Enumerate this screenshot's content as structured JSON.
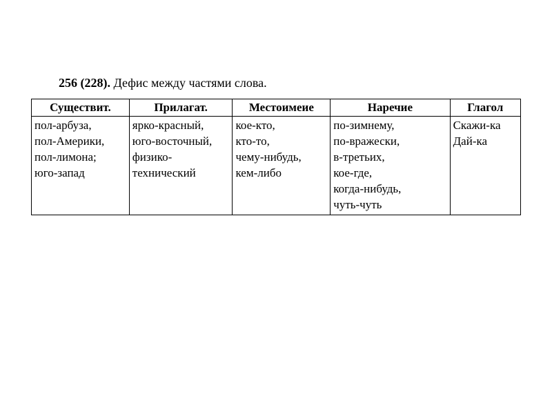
{
  "title": {
    "number": "256 (228).",
    "text": " Дефис между частями слова."
  },
  "table": {
    "type": "table",
    "columns": [
      {
        "label": "Существит.",
        "width": "18%"
      },
      {
        "label": "Прилагат.",
        "width": "19%"
      },
      {
        "label": "Местоимеие",
        "width": "18%"
      },
      {
        "label": "Наречие",
        "width": "22%"
      },
      {
        "label": "Глагол",
        "width": "13%"
      }
    ],
    "rows": [
      {
        "cells": [
          "пол-арбуза,\nпол-Америки,\nпол-лимона;\nюго-запад",
          "ярко-красный,\nюго-восточный,\nфизико-\nтехнический",
          "кое-кто,\nкто-то,\nчему-нибудь,\nкем-либо",
          "по-зимнему,\nпо-вражески,\nв-третьих,\nкое-где,\nкогда-нибудь,\nчуть-чуть",
          "Скажи-ка\nДай-ка"
        ]
      }
    ],
    "border_color": "#000000",
    "background_color": "#ffffff",
    "header_font_weight": "bold",
    "cell_font_size": 17,
    "header_font_size": 17,
    "font_family": "Times New Roman"
  }
}
